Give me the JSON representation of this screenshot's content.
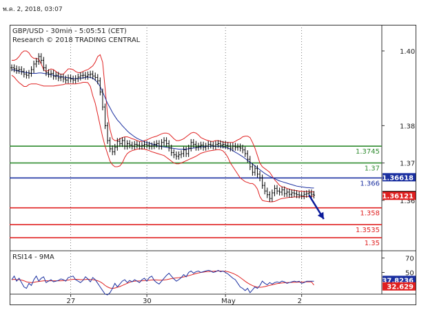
{
  "timestamp": "พ.ค. 2, 2018, 03:07",
  "chart_data": [
    {
      "type": "line",
      "title": "GBP/USD - 30min - 5:05:51 (CET)",
      "subtitle": "Research © 2018 TRADING CENTRAL",
      "ylim": [
        1.3465,
        1.407
      ],
      "yticks": [
        {
          "v": 1.4,
          "label": "1.40"
        },
        {
          "v": 1.38,
          "label": "1.38"
        },
        {
          "v": 1.37,
          "label": "1.37"
        },
        {
          "v": 1.36,
          "label": "1.36"
        }
      ],
      "xticks": [
        {
          "i": 24,
          "label": "27"
        },
        {
          "i": 55,
          "label": "30"
        },
        {
          "i": 87,
          "label": "May"
        },
        {
          "i": 118,
          "label": "2"
        }
      ],
      "x_count": 124,
      "grid": "vertical dotted",
      "close": [
        1.3955,
        1.3952,
        1.3948,
        1.395,
        1.3945,
        1.3938,
        1.3935,
        1.394,
        1.395,
        1.3965,
        1.3972,
        1.3985,
        1.3975,
        1.3955,
        1.3942,
        1.3938,
        1.394,
        1.3932,
        1.3935,
        1.3928,
        1.393,
        1.3925,
        1.3922,
        1.3928,
        1.3925,
        1.3922,
        1.3926,
        1.393,
        1.3934,
        1.3935,
        1.3932,
        1.3936,
        1.3938,
        1.3933,
        1.3929,
        1.392,
        1.389,
        1.385,
        1.38,
        1.376,
        1.3738,
        1.373,
        1.3742,
        1.3758,
        1.3752,
        1.376,
        1.3745,
        1.3752,
        1.3748,
        1.3745,
        1.375,
        1.3748,
        1.3745,
        1.3747,
        1.375,
        1.3748,
        1.3745,
        1.3746,
        1.375,
        1.3752,
        1.3745,
        1.3755,
        1.376,
        1.3752,
        1.374,
        1.3728,
        1.3722,
        1.3718,
        1.3722,
        1.3725,
        1.3735,
        1.3725,
        1.374,
        1.3755,
        1.375,
        1.3742,
        1.3745,
        1.3748,
        1.3742,
        1.3745,
        1.375,
        1.3748,
        1.3745,
        1.375,
        1.3752,
        1.3748,
        1.375,
        1.3747,
        1.3745,
        1.374,
        1.3745,
        1.3742,
        1.3743,
        1.374,
        1.3735,
        1.3725,
        1.371,
        1.369,
        1.3675,
        1.3685,
        1.367,
        1.366,
        1.364,
        1.3625,
        1.3615,
        1.3605,
        1.362,
        1.3632,
        1.3625,
        1.3622,
        1.3628,
        1.3618,
        1.3622,
        1.3616,
        1.362,
        1.3618,
        1.3615,
        1.3614,
        1.3612,
        1.3616,
        1.3618,
        1.362,
        1.3616,
        1.3614
      ],
      "ma_series_values": [
        1.395,
        1.3949,
        1.3947,
        1.3946,
        1.3944,
        1.3943,
        1.3942,
        1.3941,
        1.394,
        1.394,
        1.394,
        1.3941,
        1.3941,
        1.394,
        1.3939,
        1.3938,
        1.3937,
        1.3935,
        1.3933,
        1.3932,
        1.3931,
        1.393,
        1.3929,
        1.3928,
        1.3927,
        1.3926,
        1.3926,
        1.3926,
        1.3927,
        1.3928,
        1.3929,
        1.393,
        1.3929,
        1.3927,
        1.3922,
        1.3915,
        1.3905,
        1.389,
        1.3875,
        1.386,
        1.3848,
        1.3835,
        1.3825,
        1.3815,
        1.3808,
        1.38,
        1.3793,
        1.3786,
        1.378,
        1.3775,
        1.377,
        1.3766,
        1.3763,
        1.376,
        1.3757,
        1.3755,
        1.3753,
        1.3751,
        1.3749,
        1.3747,
        1.3745,
        1.3744,
        1.3743,
        1.3742,
        1.3741,
        1.374,
        1.3739,
        1.3738,
        1.3737,
        1.3737,
        1.3737,
        1.3737,
        1.3738,
        1.3739,
        1.374,
        1.3741,
        1.3742,
        1.3743,
        1.3744,
        1.3745,
        1.3745,
        1.3745,
        1.3745,
        1.3745,
        1.3745,
        1.3744,
        1.3743,
        1.3742,
        1.374,
        1.3737,
        1.3733,
        1.3729,
        1.3725,
        1.3721,
        1.3717,
        1.3712,
        1.3707,
        1.3702,
        1.3697,
        1.3692,
        1.3687,
        1.3682,
        1.3677,
        1.3672,
        1.3668,
        1.3664,
        1.3661,
        1.3658,
        1.3655,
        1.3652,
        1.365,
        1.3648,
        1.3646,
        1.3644,
        1.3642,
        1.364,
        1.3638,
        1.3637,
        1.3636,
        1.3635,
        1.3634,
        1.3634,
        1.3633,
        1.3633
      ],
      "bollinger_upper": [
        1.3975,
        1.3975,
        1.3978,
        1.3985,
        1.3995,
        1.4,
        1.4,
        1.3995,
        1.3985,
        1.398,
        1.398,
        1.3978,
        1.3965,
        1.395,
        1.3945,
        1.3948,
        1.3952,
        1.395,
        1.3945,
        1.394,
        1.3938,
        1.3938,
        1.3945,
        1.3952,
        1.3952,
        1.395,
        1.3945,
        1.3942,
        1.3942,
        1.3945,
        1.3948,
        1.395,
        1.3955,
        1.396,
        1.397,
        1.3985,
        1.399,
        1.397,
        1.39,
        1.383,
        1.379,
        1.3765,
        1.376,
        1.376,
        1.3765,
        1.3768,
        1.377,
        1.377,
        1.3768,
        1.3765,
        1.3763,
        1.376,
        1.3758,
        1.3758,
        1.376,
        1.3762,
        1.3765,
        1.3768,
        1.377,
        1.3772,
        1.3775,
        1.3778,
        1.378,
        1.378,
        1.3778,
        1.3772,
        1.3765,
        1.376,
        1.376,
        1.3762,
        1.3765,
        1.377,
        1.3775,
        1.378,
        1.3782,
        1.378,
        1.3775,
        1.3768,
        1.3765,
        1.3762,
        1.376,
        1.3758,
        1.3758,
        1.376,
        1.376,
        1.3758,
        1.3756,
        1.3755,
        1.3755,
        1.3755,
        1.3755,
        1.3758,
        1.3762,
        1.3765,
        1.377,
        1.3772,
        1.3772,
        1.3768,
        1.3755,
        1.374,
        1.372,
        1.37,
        1.369,
        1.3685,
        1.368,
        1.3675,
        1.3665,
        1.3655,
        1.3648,
        1.364,
        1.3636,
        1.3635,
        1.3632,
        1.363,
        1.3628,
        1.3627,
        1.3626,
        1.3625,
        1.3624,
        1.3624,
        1.3623,
        1.3623,
        1.3623,
        1.3622
      ],
      "bollinger_lower": [
        1.3935,
        1.393,
        1.3922,
        1.3915,
        1.391,
        1.3905,
        1.3905,
        1.391,
        1.3912,
        1.3912,
        1.3912,
        1.391,
        1.3908,
        1.3906,
        1.3906,
        1.3906,
        1.3906,
        1.3906,
        1.3907,
        1.3908,
        1.3909,
        1.391,
        1.3912,
        1.3912,
        1.3912,
        1.3912,
        1.3912,
        1.3913,
        1.3914,
        1.3916,
        1.3916,
        1.3915,
        1.3905,
        1.388,
        1.386,
        1.383,
        1.38,
        1.377,
        1.3745,
        1.3725,
        1.3705,
        1.3695,
        1.369,
        1.369,
        1.3692,
        1.37,
        1.3715,
        1.3725,
        1.373,
        1.3733,
        1.3735,
        1.3737,
        1.3738,
        1.3738,
        1.3737,
        1.3735,
        1.3733,
        1.373,
        1.3728,
        1.3726,
        1.3724,
        1.3722,
        1.372,
        1.3715,
        1.371,
        1.3705,
        1.37,
        1.3698,
        1.3698,
        1.37,
        1.3703,
        1.3706,
        1.3709,
        1.3712,
        1.3715,
        1.3718,
        1.3722,
        1.3726,
        1.3728,
        1.373,
        1.3732,
        1.3733,
        1.3734,
        1.3735,
        1.3736,
        1.3735,
        1.3732,
        1.3725,
        1.3715,
        1.37,
        1.369,
        1.368,
        1.367,
        1.366,
        1.3655,
        1.365,
        1.3648,
        1.3645,
        1.3645,
        1.364,
        1.363,
        1.361,
        1.36,
        1.3598,
        1.3597,
        1.3596,
        1.3596,
        1.3597,
        1.36,
        1.3603,
        1.3605,
        1.3606,
        1.3607,
        1.3608,
        1.3608,
        1.3609,
        1.3609,
        1.3609,
        1.361,
        1.361,
        1.361,
        1.361,
        1.3611,
        1.3611
      ],
      "levels": [
        {
          "value": 1.3745,
          "label": "1.3745",
          "color": "#2e8b2e"
        },
        {
          "value": 1.37,
          "label": "1.37",
          "color": "#2e8b2e"
        },
        {
          "value": 1.366,
          "label": "1.366",
          "color": "#1a2fa0"
        },
        {
          "value": 1.358,
          "label": "1.358",
          "color": "#e02020"
        },
        {
          "value": 1.3535,
          "label": "1.3535",
          "color": "#e02020"
        },
        {
          "value": 1.35,
          "label": "1.35",
          "color": "#e02020"
        }
      ],
      "price_boxes": [
        {
          "value": 1.36618,
          "label": "1.36618",
          "bg": "#1a2fa0",
          "fg": "#ffffff"
        },
        {
          "value": 1.3614,
          "label": "1.3614",
          "bg": "#000000",
          "fg": "#ffffff"
        },
        {
          "value": 1.36121,
          "label": "1.36121",
          "bg": "#e02020",
          "fg": "#ffffff"
        }
      ],
      "forecast_arrow": {
        "from": {
          "i": 121,
          "v": 1.3614
        },
        "to": {
          "i": 127,
          "v": 1.355
        },
        "color": "#0a1a9a"
      }
    },
    {
      "type": "line",
      "title": "RSI14 - 9MA",
      "ylim": [
        20,
        80
      ],
      "yticks": [
        {
          "v": 70,
          "label": "70"
        },
        {
          "v": 50,
          "label": "50"
        }
      ],
      "rsi": [
        40,
        45,
        38,
        42,
        36,
        30,
        28,
        35,
        32,
        40,
        45,
        38,
        42,
        44,
        36,
        38,
        40,
        37,
        38,
        39,
        41,
        40,
        38,
        43,
        44,
        45,
        40,
        38,
        36,
        39,
        44,
        41,
        37,
        43,
        40,
        35,
        30,
        25,
        20,
        19,
        22,
        28,
        35,
        30,
        34,
        38,
        40,
        36,
        39,
        37,
        40,
        38,
        36,
        40,
        42,
        38,
        43,
        45,
        39,
        36,
        34,
        38,
        42,
        46,
        49,
        45,
        41,
        38,
        40,
        43,
        47,
        44,
        50,
        52,
        49,
        51,
        52,
        50,
        51,
        52,
        53,
        52,
        50,
        51,
        53,
        51,
        52,
        50,
        48,
        45,
        42,
        40,
        35,
        30,
        28,
        25,
        28,
        22,
        26,
        30,
        28,
        32,
        38,
        35,
        33,
        36,
        34,
        36,
        37,
        36,
        38,
        37,
        35,
        36,
        37,
        38,
        37,
        37.8,
        35,
        36,
        37.8,
        37.8,
        37.8,
        37.8
      ],
      "rsi_ma": [
        40,
        40.5,
        40,
        40,
        39.5,
        38.5,
        37,
        36.5,
        36,
        36.5,
        37,
        37.5,
        38,
        38.5,
        38.5,
        38.5,
        38.5,
        38.5,
        38.5,
        38.5,
        38.5,
        38.8,
        39,
        39.5,
        40,
        40.5,
        40.5,
        40.5,
        40,
        40,
        40.2,
        40.5,
        40.2,
        40,
        39.5,
        38.5,
        37,
        35,
        32,
        30,
        28.5,
        28,
        28.5,
        29.5,
        30.5,
        32,
        33.5,
        35,
        36.5,
        37.5,
        38,
        38.2,
        38.3,
        38.5,
        38.8,
        39,
        39.3,
        39.6,
        39.8,
        39.6,
        39.4,
        39.4,
        39.6,
        40,
        40.8,
        41.5,
        42,
        42.5,
        42.8,
        43.2,
        43.8,
        44.5,
        45.5,
        46.5,
        47.5,
        48.5,
        49.3,
        50,
        50.5,
        51,
        51.2,
        51.5,
        51.7,
        51.9,
        52,
        52,
        51.8,
        51.5,
        51,
        50,
        48.8,
        47.2,
        45.3,
        43,
        40.5,
        37.8,
        35.5,
        33.5,
        31.8,
        30.5,
        29.8,
        29.5,
        29.8,
        30.5,
        31.3,
        32.2,
        33,
        33.8,
        34.5,
        35,
        35.5,
        35.8,
        36,
        36.2,
        36.3,
        36.5,
        36.6,
        36.7,
        36.8,
        36.9,
        37,
        37,
        37,
        32.6
      ],
      "value_boxes": [
        {
          "value": 37.8236,
          "label": "37.8236",
          "bg": "#1a2fa0",
          "fg": "#ffffff"
        },
        {
          "value": 32.629,
          "label": "32.629",
          "bg": "#e02020",
          "fg": "#ffffff"
        }
      ]
    }
  ]
}
